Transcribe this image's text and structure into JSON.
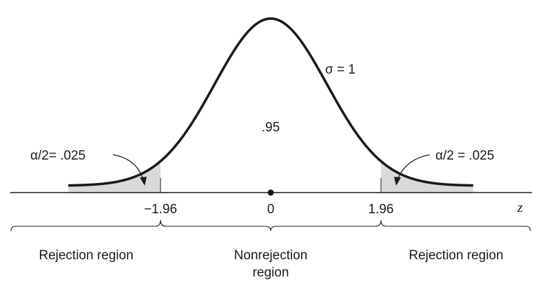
{
  "distribution": {
    "sigma_label": "σ = 1",
    "center_area_label": ".95"
  },
  "tails": {
    "left_label": "α/2= .025",
    "right_label": "α/2 = .025",
    "fill_color": "#d9d9d9"
  },
  "axis": {
    "variable": "z",
    "ticks": [
      "−1.96",
      "0",
      "1.96"
    ],
    "critical_value": 1.96,
    "range": [
      -3.6,
      3.6
    ]
  },
  "regions": {
    "left": "Rejection region",
    "middle_line1": "Nonrejection",
    "middle_line2": "region",
    "right": "Rejection region"
  }
}
